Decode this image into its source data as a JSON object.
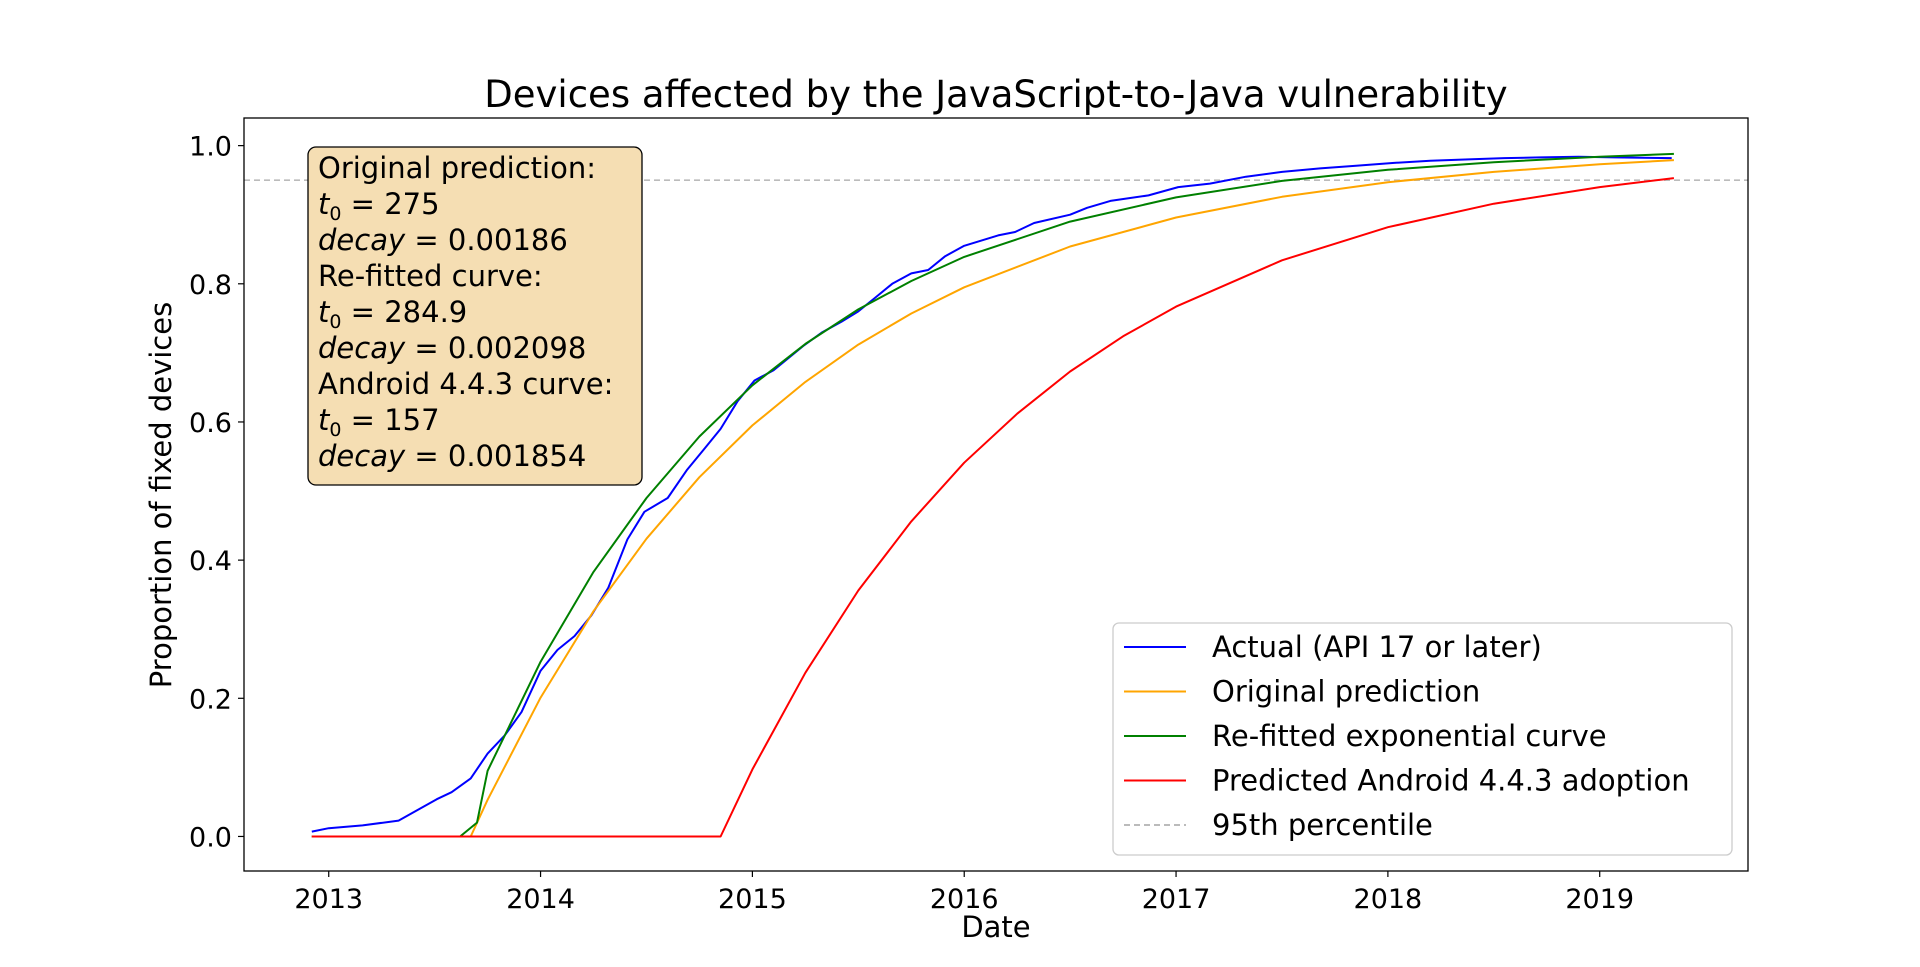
{
  "chart_data": {
    "type": "line",
    "title": "Devices affected by the JavaScript-to-Java vulnerability",
    "xlabel": "Date",
    "ylabel": "Proportion of fixed devices",
    "xlim": [
      2012.6,
      2019.7
    ],
    "ylim": [
      -0.05,
      1.04
    ],
    "x_ticks": [
      "2013",
      "2014",
      "2015",
      "2016",
      "2017",
      "2018",
      "2019"
    ],
    "y_ticks": [
      "0.0",
      "0.2",
      "0.4",
      "0.6",
      "0.8",
      "1.0"
    ],
    "grid": false,
    "legend_position": "lower-right",
    "reference_line": {
      "name": "95th percentile",
      "y": 0.95,
      "color": "#bbbbbb",
      "style": "dashed"
    },
    "series": [
      {
        "name": "Actual (API 17 or later)",
        "color": "#0000ff",
        "x": [
          2012.92,
          2013.0,
          2013.16,
          2013.33,
          2013.43,
          2013.51,
          2013.58,
          2013.67,
          2013.75,
          2013.83,
          2013.91,
          2014.0,
          2014.08,
          2014.16,
          2014.24,
          2014.32,
          2014.41,
          2014.49,
          2014.6,
          2014.69,
          2014.77,
          2014.85,
          2014.93,
          2015.01,
          2015.1,
          2015.16,
          2015.24,
          2015.33,
          2015.42,
          2015.5,
          2015.58,
          2015.66,
          2015.75,
          2015.83,
          2015.91,
          2016.0,
          2016.16,
          2016.24,
          2016.33,
          2016.5,
          2016.58,
          2016.69,
          2016.87,
          2017.01,
          2017.16,
          2017.33,
          2017.5,
          2017.68,
          2017.85,
          2018.03,
          2018.2,
          2018.38,
          2018.55,
          2018.72,
          2018.9,
          2019.07,
          2019.34
        ],
        "y": [
          0.007,
          0.012,
          0.016,
          0.023,
          0.04,
          0.054,
          0.064,
          0.084,
          0.12,
          0.146,
          0.18,
          0.24,
          0.27,
          0.29,
          0.32,
          0.36,
          0.43,
          0.47,
          0.49,
          0.53,
          0.56,
          0.59,
          0.63,
          0.66,
          0.675,
          0.69,
          0.71,
          0.73,
          0.745,
          0.76,
          0.78,
          0.8,
          0.815,
          0.82,
          0.84,
          0.855,
          0.87,
          0.875,
          0.888,
          0.9,
          0.91,
          0.92,
          0.928,
          0.94,
          0.945,
          0.955,
          0.962,
          0.967,
          0.971,
          0.975,
          0.978,
          0.98,
          0.982,
          0.983,
          0.984,
          0.983,
          0.982
        ]
      },
      {
        "name": "Original prediction",
        "color": "#ffa500",
        "x": [
          2012.92,
          2013.67,
          2013.75,
          2014.0,
          2014.25,
          2014.5,
          2014.75,
          2015.0,
          2015.25,
          2015.5,
          2015.75,
          2016.0,
          2016.5,
          2017.0,
          2017.5,
          2018.0,
          2018.5,
          2019.0,
          2019.35
        ],
        "y": [
          0,
          0,
          0.053,
          0.201,
          0.326,
          0.431,
          0.52,
          0.595,
          0.658,
          0.712,
          0.757,
          0.795,
          0.854,
          0.896,
          0.926,
          0.947,
          0.962,
          0.973,
          0.979
        ]
      },
      {
        "name": "Re-fitted exponential curve",
        "color": "#008000",
        "x": [
          2012.92,
          2013.62,
          2013.7,
          2013.75,
          2014.0,
          2014.25,
          2014.5,
          2014.75,
          2015.0,
          2015.25,
          2015.5,
          2015.75,
          2016.0,
          2016.5,
          2017.0,
          2017.5,
          2018.0,
          2018.5,
          2019.0,
          2019.35
        ],
        "y": [
          0,
          0,
          0.02,
          0.095,
          0.253,
          0.383,
          0.49,
          0.579,
          0.653,
          0.713,
          0.763,
          0.804,
          0.839,
          0.89,
          0.925,
          0.949,
          0.965,
          0.976,
          0.984,
          0.988
        ]
      },
      {
        "name": "Predicted Android 4.4.3 adoption",
        "color": "#ff0000",
        "x": [
          2012.92,
          2014.85,
          2015.0,
          2015.25,
          2015.5,
          2015.75,
          2016.0,
          2016.25,
          2016.5,
          2016.75,
          2017.0,
          2017.5,
          2018.0,
          2018.5,
          2019.0,
          2019.35
        ],
        "y": [
          0,
          0,
          0.097,
          0.237,
          0.356,
          0.456,
          0.541,
          0.612,
          0.673,
          0.724,
          0.767,
          0.834,
          0.882,
          0.916,
          0.94,
          0.953
        ]
      }
    ],
    "annotation": {
      "box_color": "#f5deb3",
      "original_heading": "Original prediction:",
      "original_t0": "275",
      "original_decay": "0.00186",
      "refit_heading": "Re-fitted curve:",
      "refit_t0": "284.9",
      "refit_decay": "0.002098",
      "android_heading": "Android 4.4.3 curve:",
      "android_t0": "157",
      "android_decay": "0.001854",
      "t_symbol": "t",
      "t_sub": "0",
      "decay_symbol": "decay",
      "equals": " = "
    }
  }
}
